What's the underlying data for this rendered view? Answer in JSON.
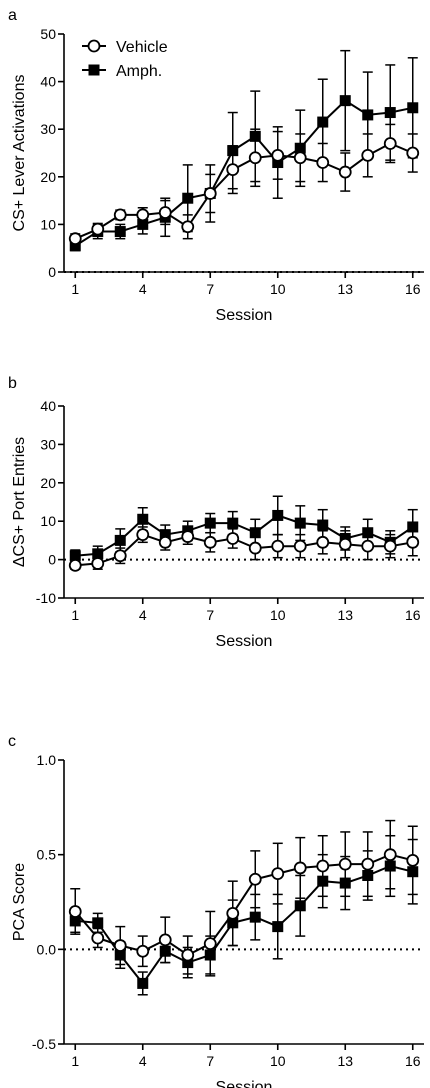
{
  "chart_data": [
    {
      "type": "line",
      "panel_label": "a",
      "xlabel": "Session",
      "ylabel": "CS+ Lever Activations",
      "xlim": [
        0.5,
        16.5
      ],
      "ylim": [
        0,
        50
      ],
      "xticks": [
        1,
        4,
        7,
        10,
        13,
        16
      ],
      "yticks": [
        0,
        10,
        20,
        30,
        40,
        50
      ],
      "baseline": 0,
      "grid": false,
      "legend": {
        "position": "top-left",
        "entries": [
          "Vehicle",
          "Amph."
        ]
      },
      "x": [
        1,
        2,
        3,
        4,
        5,
        6,
        7,
        8,
        9,
        10,
        11,
        12,
        13,
        14,
        15,
        16
      ],
      "series": [
        {
          "name": "Vehicle",
          "marker": "open-circle",
          "values": [
            7.0,
            9.0,
            12.0,
            12.0,
            12.5,
            9.5,
            16.5,
            21.5,
            24.0,
            24.5,
            24.0,
            23.0,
            21.0,
            24.5,
            27.0,
            25.0
          ],
          "errors": [
            1.0,
            1.2,
            1.0,
            1.5,
            2.5,
            2.5,
            4.0,
            5.0,
            6.0,
            5.0,
            5.0,
            4.0,
            4.0,
            4.5,
            4.0,
            4.0
          ]
        },
        {
          "name": "Amph.",
          "marker": "filled-square",
          "values": [
            5.5,
            8.5,
            8.5,
            10.0,
            11.5,
            15.5,
            16.5,
            25.5,
            28.5,
            23.0,
            26.0,
            31.5,
            36.0,
            33.0,
            33.5,
            34.5
          ],
          "errors": [
            1.0,
            1.5,
            1.5,
            2.0,
            4.0,
            7.0,
            6.0,
            8.0,
            9.5,
            7.5,
            8.0,
            9.0,
            10.5,
            9.0,
            10.0,
            10.5
          ]
        }
      ]
    },
    {
      "type": "line",
      "panel_label": "b",
      "xlabel": "Session",
      "ylabel": "ΔCS+ Port Entries",
      "xlim": [
        0.5,
        16.5
      ],
      "ylim": [
        -10,
        40
      ],
      "xticks": [
        1,
        4,
        7,
        10,
        13,
        16
      ],
      "yticks": [
        -10,
        0,
        10,
        20,
        30,
        40
      ],
      "baseline": 0,
      "grid": false,
      "x": [
        1,
        2,
        3,
        4,
        5,
        6,
        7,
        8,
        9,
        10,
        11,
        12,
        13,
        14,
        15,
        16
      ],
      "series": [
        {
          "name": "Vehicle",
          "marker": "open-circle",
          "values": [
            -1.5,
            -1.0,
            1.0,
            6.5,
            4.5,
            6.0,
            4.5,
            5.5,
            3.0,
            3.5,
            3.5,
            4.5,
            4.0,
            3.5,
            3.5,
            4.5
          ],
          "errors": [
            1.0,
            1.5,
            2.0,
            2.0,
            2.0,
            2.0,
            2.5,
            2.5,
            3.0,
            3.0,
            3.0,
            3.0,
            3.5,
            3.5,
            3.0,
            3.5
          ]
        },
        {
          "name": "Amph.",
          "marker": "filled-square",
          "values": [
            1.0,
            1.5,
            5.0,
            10.5,
            6.5,
            7.5,
            9.5,
            9.5,
            7.0,
            11.5,
            9.5,
            9.0,
            5.5,
            7.0,
            4.5,
            8.5
          ],
          "errors": [
            1.5,
            2.0,
            3.0,
            3.0,
            2.5,
            2.5,
            2.5,
            3.0,
            3.5,
            5.0,
            4.5,
            4.0,
            3.0,
            3.5,
            3.0,
            4.5
          ]
        }
      ]
    },
    {
      "type": "line",
      "panel_label": "c",
      "xlabel": "Session",
      "ylabel": "PCA Score",
      "xlim": [
        0.5,
        16.5
      ],
      "ylim": [
        -0.5,
        1.0
      ],
      "xticks": [
        1,
        4,
        7,
        10,
        13,
        16
      ],
      "yticks": [
        -0.5,
        0.0,
        0.5,
        1.0
      ],
      "baseline": 0,
      "grid": false,
      "x": [
        1,
        2,
        3,
        4,
        5,
        6,
        7,
        8,
        9,
        10,
        11,
        12,
        13,
        14,
        15,
        16
      ],
      "series": [
        {
          "name": "Vehicle",
          "marker": "open-circle",
          "values": [
            0.2,
            0.06,
            0.02,
            -0.01,
            0.05,
            -0.03,
            0.03,
            0.19,
            0.37,
            0.4,
            0.43,
            0.44,
            0.45,
            0.45,
            0.5,
            0.47
          ],
          "errors": [
            0.12,
            0.05,
            0.1,
            0.08,
            0.12,
            0.1,
            0.17,
            0.17,
            0.15,
            0.16,
            0.16,
            0.16,
            0.17,
            0.17,
            0.18,
            0.18
          ]
        },
        {
          "name": "Amph.",
          "marker": "filled-square",
          "values": [
            0.15,
            0.14,
            -0.03,
            -0.18,
            -0.01,
            -0.07,
            -0.03,
            0.14,
            0.17,
            0.12,
            0.23,
            0.36,
            0.35,
            0.39,
            0.44,
            0.41
          ],
          "errors": [
            0.06,
            0.05,
            0.07,
            0.06,
            0.06,
            0.08,
            0.1,
            0.12,
            0.12,
            0.17,
            0.16,
            0.14,
            0.14,
            0.13,
            0.16,
            0.17
          ]
        }
      ]
    }
  ]
}
